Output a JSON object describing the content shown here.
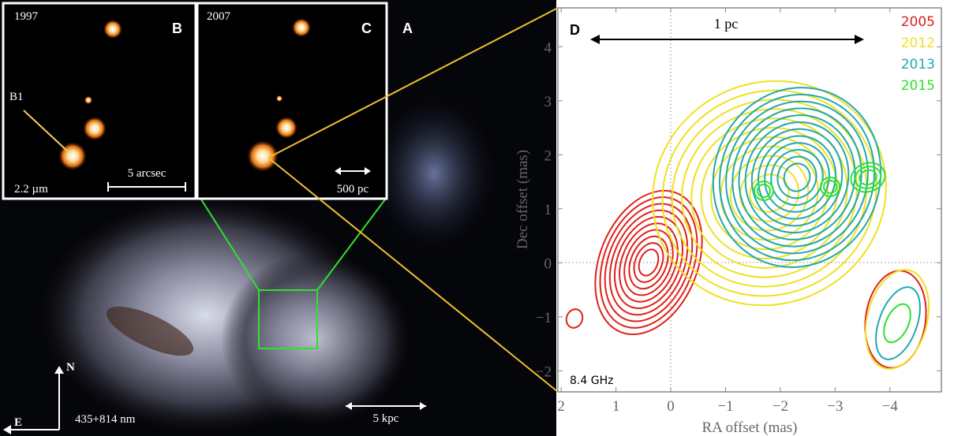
{
  "panels": {
    "a": {
      "label": "A",
      "scale_bar": "5 kpc",
      "compass_north": "N",
      "compass_east": "E",
      "filter": "435+814 nm"
    },
    "b": {
      "label": "B",
      "year": "1997",
      "source": "B1",
      "wavelength": "2.2 µm",
      "scale_bar": "5 arcsec"
    },
    "c": {
      "label": "C",
      "year": "2007",
      "scale_bar": "500 pc"
    },
    "d": {
      "label": "D",
      "scale_bar": "1 pc",
      "frequency": "8.4 GHz",
      "xlabel": "RA offset (mas)",
      "ylabel": "Dec offset (mas)",
      "xlim": [
        2.06,
        -4.94
      ],
      "ylim": [
        -2.39,
        4.72
      ],
      "xticks": [
        2,
        1,
        0,
        {
          "value": -1,
          "label": "−1"
        },
        {
          "value": -2,
          "label": "−2"
        },
        {
          "value": -3,
          "label": "−3"
        },
        {
          "value": -4,
          "label": "−4"
        }
      ],
      "yticks": [
        {
          "value": -2,
          "label": "−2"
        },
        {
          "value": -1,
          "label": "−1"
        },
        0,
        1,
        2,
        3,
        4
      ],
      "legend": [
        {
          "name": "2005",
          "color": "#e0201b"
        },
        {
          "name": "2012",
          "color": "#f0e020"
        },
        {
          "name": "2013",
          "color": "#20a8b0"
        },
        {
          "name": "2015",
          "color": "#30e030"
        }
      ]
    }
  }
}
